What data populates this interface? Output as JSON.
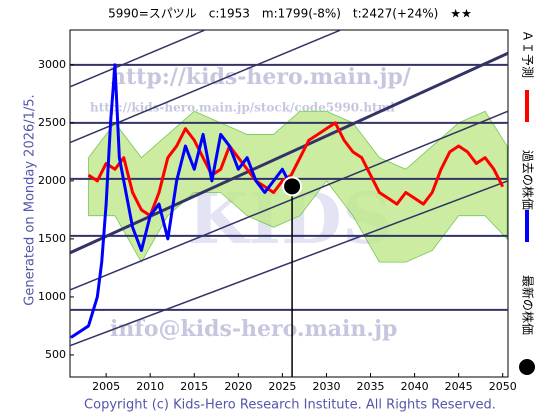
{
  "chart_data": {
    "type": "line",
    "title": "5990=スパツル　c:1953　m:1799(-8%)　t:2427(+24%)　★★",
    "y_label": "Generated on Monday 2026/1/5.",
    "footer": "Copyright (c) Kids-Hero Research Institute. All Rights Reserved.",
    "watermarks": [
      "http://kids-hero.main.jp/",
      "http://kids-hero.main.jp/stock/code5990.html",
      "info@kids-hero.main.jp",
      "KIDS"
    ],
    "xlim": [
      2000.9,
      2050.6
    ],
    "ylim": [
      310,
      3300
    ],
    "xticks": [
      2005,
      2010,
      2015,
      2020,
      2025,
      2030,
      2035,
      2040,
      2045,
      2050
    ],
    "yticks": [
      500,
      1000,
      1500,
      2000,
      2500,
      3000
    ],
    "grid": false,
    "level_lines": [
      3000,
      2500,
      2017,
      1526,
      888
    ],
    "trend_lines": [
      {
        "x": [
          2000.9,
          2050.6
        ],
        "values": [
          580,
          2000
        ]
      },
      {
        "x": [
          2000.9,
          2050.6
        ],
        "values": [
          1060,
          2600
        ]
      },
      {
        "x": [
          2000.9,
          2050.6
        ],
        "values": [
          1380,
          3100
        ]
      },
      {
        "x": [
          2000.9,
          2050.6
        ],
        "values": [
          2330,
          3900
        ]
      },
      {
        "x": [
          2000.9,
          2050.6
        ],
        "values": [
          2810,
          4400
        ]
      }
    ],
    "band": {
      "color": "#bfe88a",
      "x": [
        2003,
        2006,
        2009,
        2012,
        2015,
        2018,
        2021,
        2024,
        2027,
        2030,
        2033,
        2036,
        2039,
        2042,
        2045,
        2048,
        2050.5
      ],
      "upper": [
        2200,
        2500,
        2200,
        2400,
        2600,
        2500,
        2400,
        2400,
        2600,
        2600,
        2500,
        2200,
        2100,
        2300,
        2500,
        2600,
        2300
      ],
      "lower": [
        1700,
        1700,
        1300,
        1700,
        1900,
        1900,
        1700,
        1600,
        1700,
        2000,
        1700,
        1300,
        1300,
        1400,
        1700,
        1700,
        1500
      ]
    },
    "series": [
      {
        "name": "ＡＩ予測",
        "color": "#ff0000",
        "x": [
          2003,
          2004,
          2005,
          2006,
          2007,
          2008,
          2009,
          2010,
          2011,
          2012,
          2013,
          2014,
          2015,
          2016,
          2017,
          2018,
          2019,
          2020,
          2021,
          2022,
          2023,
          2024,
          2025,
          2026,
          2027,
          2028,
          2029,
          2030,
          2031,
          2032,
          2033,
          2034,
          2035,
          2036,
          2037,
          2038,
          2039,
          2040,
          2041,
          2042,
          2043,
          2044,
          2045,
          2046,
          2047,
          2048,
          2049,
          2050
        ],
        "values": [
          2050,
          2000,
          2150,
          2100,
          2200,
          1900,
          1750,
          1700,
          1900,
          2200,
          2300,
          2450,
          2350,
          2200,
          2050,
          2100,
          2300,
          2200,
          2100,
          2000,
          1950,
          1900,
          2000,
          2050,
          2200,
          2350,
          2400,
          2450,
          2500,
          2350,
          2250,
          2200,
          2050,
          1900,
          1850,
          1800,
          1900,
          1850,
          1800,
          1900,
          2100,
          2250,
          2300,
          2250,
          2150,
          2200,
          2100,
          1950
        ]
      },
      {
        "name": "過去の株価",
        "color": "#0000ff",
        "x": [
          2001,
          2002,
          2003,
          2004,
          2004.5,
          2005,
          2005.5,
          2006,
          2006.5,
          2007,
          2008,
          2009,
          2010,
          2011,
          2012,
          2013,
          2014,
          2015,
          2016,
          2017,
          2018,
          2019,
          2020,
          2021,
          2022,
          2023,
          2024,
          2025,
          2026
        ],
        "values": [
          650,
          700,
          750,
          1000,
          1300,
          1800,
          2500,
          3000,
          2200,
          2000,
          1600,
          1400,
          1700,
          1800,
          1500,
          2000,
          2300,
          2100,
          2400,
          2000,
          2400,
          2300,
          2100,
          2200,
          2000,
          1900,
          2000,
          2100,
          1953
        ]
      },
      {
        "name": "最新の株価",
        "color": "#000000",
        "x": [
          2026.1
        ],
        "values": [
          1953
        ]
      }
    ]
  }
}
